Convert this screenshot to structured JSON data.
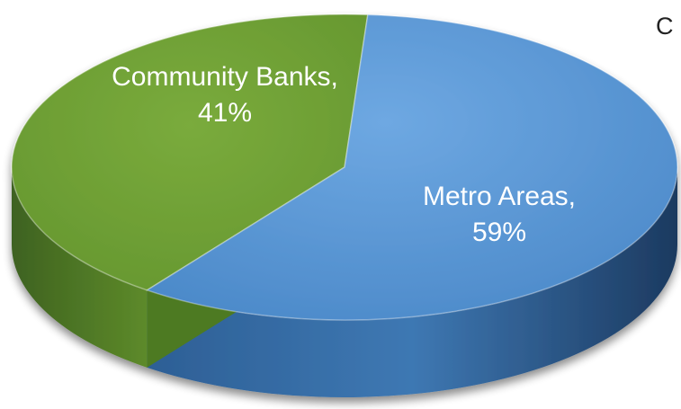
{
  "chart_data": {
    "type": "pie",
    "style": "3d",
    "slices": [
      {
        "label": "Community Banks, 41%",
        "value": 41,
        "color": "#6f9e35"
      },
      {
        "label": "Metro Areas, 59%",
        "value": 59,
        "color": "#5a96d4"
      }
    ],
    "legend": "none"
  },
  "clipped_text": "C"
}
